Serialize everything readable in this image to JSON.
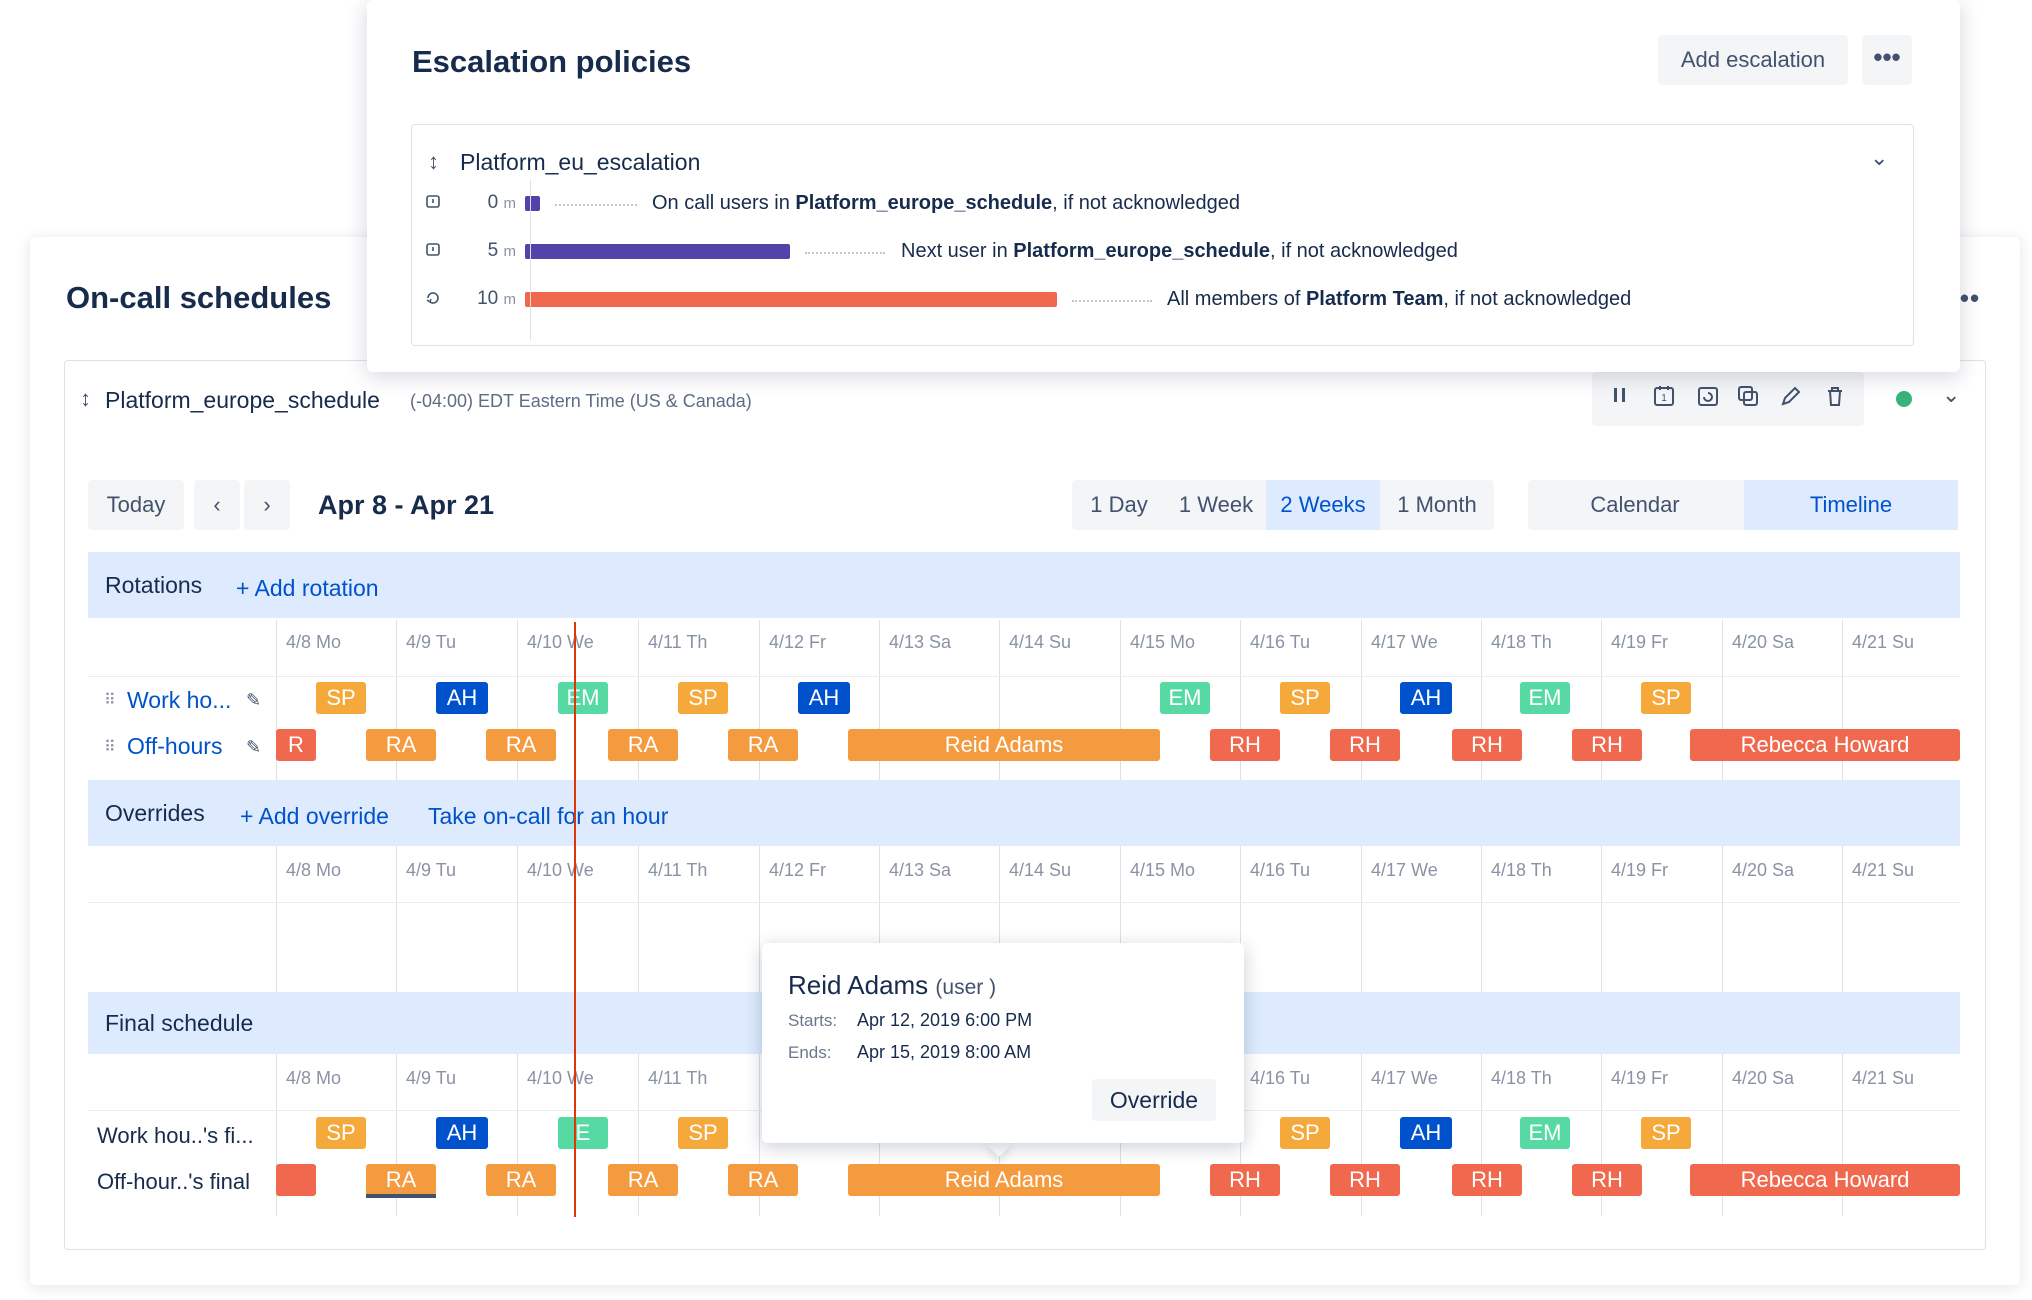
{
  "oncall": {
    "title": "On-call schedules",
    "schedule": {
      "name": "Platform_europe_schedule",
      "timezone": "(-04:00) EDT Eastern Time (US & Canada)",
      "status_color": "#36b37e"
    },
    "nav": {
      "today": "Today",
      "prev": "‹",
      "next": "›",
      "date_range": "Apr 8 - Apr 21"
    },
    "ranges": [
      "1 Day",
      "1 Week",
      "2 Weeks",
      "1 Month"
    ],
    "active_range": "2 Weeks",
    "views": [
      "Calendar",
      "Timeline"
    ],
    "active_view": "Timeline",
    "days": [
      "4/8 Mo",
      "4/9 Tu",
      "4/10 We",
      "4/11 Th",
      "4/12 Fr",
      "4/13 Sa",
      "4/14 Su",
      "4/15 Mo",
      "4/16 Tu",
      "4/17 We",
      "4/18 Th",
      "4/19 Fr",
      "4/20 Sa",
      "4/21 Su"
    ],
    "rotations": {
      "title": "Rotations",
      "add_link": "+ Add rotation",
      "rows": [
        {
          "label": "Work ho...",
          "chips": [
            "SP",
            "AH",
            "EM",
            "SP",
            "AH",
            "EM",
            "SP",
            "AH",
            "EM",
            "SP"
          ]
        },
        {
          "label": "Off-hours",
          "chips": [
            "R",
            "RA",
            "RA",
            "RA",
            "RA",
            "Reid Adams",
            "RH",
            "RH",
            "RH",
            "RH",
            "Rebecca Howard"
          ]
        }
      ]
    },
    "overrides": {
      "title": "Overrides",
      "add_link": "+ Add override",
      "take_link": "Take on-call for an hour"
    },
    "final": {
      "title": "Final schedule",
      "rows": [
        {
          "label": "Work hou..'s fi...",
          "chips": [
            "SP",
            "AH",
            "E",
            "SP",
            "SP",
            "AH",
            "EM",
            "SP"
          ]
        },
        {
          "label": "Off-hour..'s final",
          "chips": [
            "RA",
            "RA",
            "RA",
            "RA",
            "Reid Adams",
            "RH",
            "RH",
            "RH",
            "RH",
            "Rebecca Howard"
          ]
        }
      ]
    }
  },
  "escalation": {
    "title": "Escalation policies",
    "add_button": "Add escalation",
    "more_button": "•••",
    "policy_name": "Platform_eu_escalation",
    "steps": [
      {
        "time": "0",
        "unit": "m",
        "pre": "On call users in ",
        "target": "Platform_europe_schedule",
        "post": ", if not acknowledged",
        "color": "#5243aa"
      },
      {
        "time": "5",
        "unit": "m",
        "pre": "Next user in ",
        "target": "Platform_europe_schedule",
        "post": ", if not acknowledged",
        "color": "#5243aa"
      },
      {
        "time": "10",
        "unit": "m",
        "pre": "All members of ",
        "target": "Platform Team",
        "post": ", if not acknowledged",
        "color": "#f0694e"
      }
    ]
  },
  "tooltip": {
    "name": "Reid Adams",
    "role": "(user )",
    "starts_label": "Starts:",
    "starts_value": "Apr 12, 2019 6:00 PM",
    "ends_label": "Ends:",
    "ends_value": "Apr 15, 2019 8:00 AM",
    "button": "Override"
  },
  "colors": {
    "SP": "#f6a93b",
    "AH": "#0052cc",
    "EM": "#57d9a3",
    "RA": "#f49b3f",
    "RH": "#f0694e",
    "accent": "#0052cc",
    "now_line": "#de350b"
  },
  "icons": [
    "sort-icon",
    "pause-icon",
    "calendar-icon",
    "calendar-refresh-icon",
    "copy-calendar-icon",
    "edit-icon",
    "trash-icon",
    "chevron-down-icon",
    "drag-handle-icon",
    "pencil-icon",
    "delay-icon",
    "repeat-icon"
  ]
}
